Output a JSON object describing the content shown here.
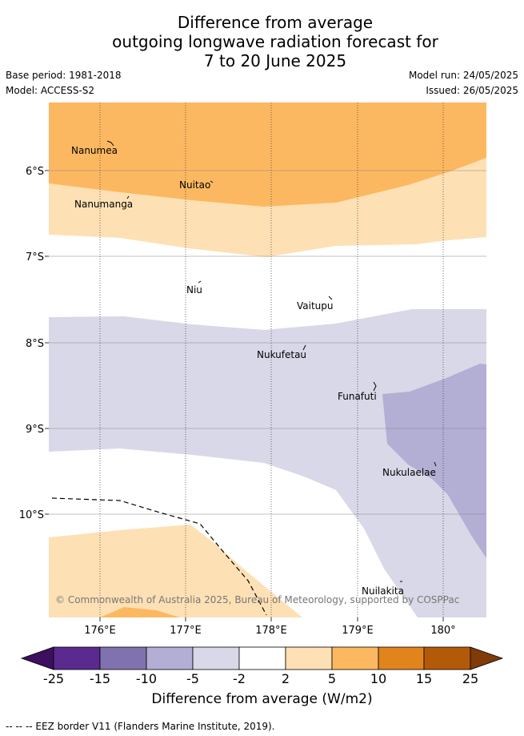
{
  "title_lines": [
    "Difference from average",
    "outgoing longwave radiation forecast for",
    "7 to 20 June 2025"
  ],
  "meta": {
    "base_period": "Base period: 1981-2018",
    "model": "Model: ACCESS-S2",
    "model_run": "Model run: 24/05/2025",
    "issued": "Issued: 26/05/2025"
  },
  "axes": {
    "lat_labels": [
      "6°S",
      "7°S",
      "8°S",
      "9°S",
      "10°S"
    ],
    "lon_labels": [
      "176°E",
      "177°E",
      "178°E",
      "179°E",
      "180°"
    ]
  },
  "places": [
    "Nanumea",
    "Nuitao",
    "Nanumanga",
    "Niu",
    "Vaitupu",
    "Nukufetau",
    "Funafuti",
    "Nukulaelae",
    "Nuilakita"
  ],
  "copyright": "© Commonwealth of Australia 2025, Bureau of Meteorology, supported by COSPPac",
  "colorbar": {
    "ticks": [
      "-25",
      "-15",
      "-10",
      "-5",
      "-2",
      "2",
      "5",
      "10",
      "15",
      "25"
    ],
    "colors": [
      "#3d0f5e",
      "#5a2a8e",
      "#7f72ae",
      "#b2aed4",
      "#d8d8e8",
      "#ffffff",
      "#fde0b4",
      "#fcb860",
      "#e1841c",
      "#b35a08",
      "#7f3b08"
    ],
    "title": "Difference from average (W/m2)"
  },
  "footer": "-- --  -- EEZ border V11 (Flanders Marine Institute, 2019)."
}
